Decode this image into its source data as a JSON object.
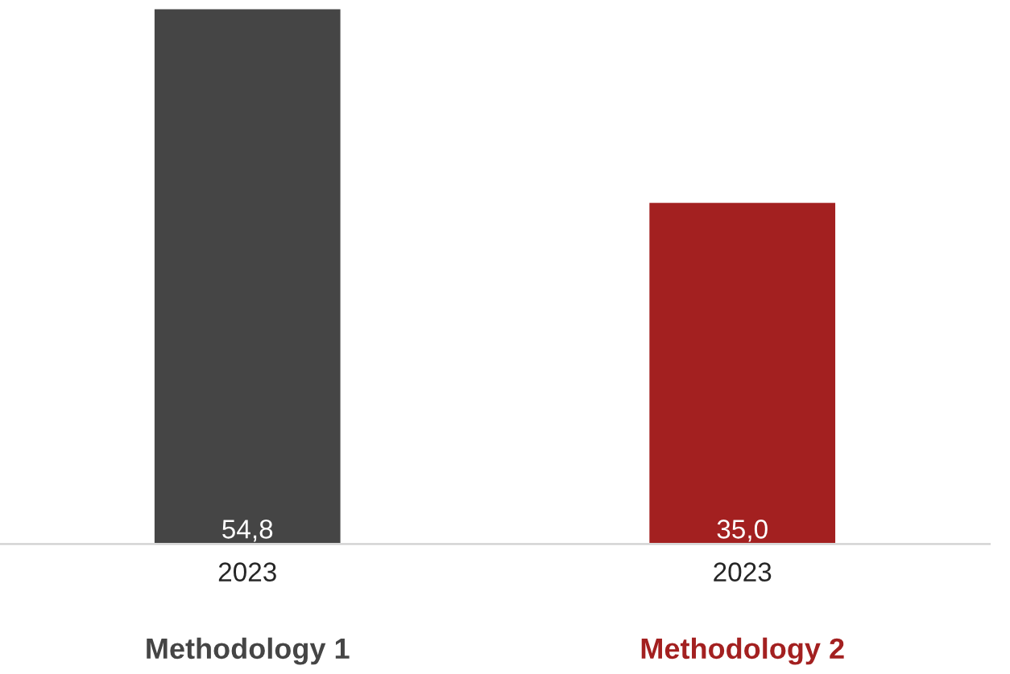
{
  "chart_data": {
    "type": "bar",
    "categories": [
      "2023",
      "2023"
    ],
    "series": [
      {
        "name": "Methodology 1",
        "color": "#454545",
        "values": [
          54.8,
          null
        ],
        "value_labels": [
          "54,8",
          null
        ]
      },
      {
        "name": "Methodology 2",
        "color": "#a32020",
        "values": [
          null,
          35.0
        ],
        "value_labels": [
          null,
          "35,0"
        ]
      }
    ],
    "grid": false,
    "legend": false
  }
}
